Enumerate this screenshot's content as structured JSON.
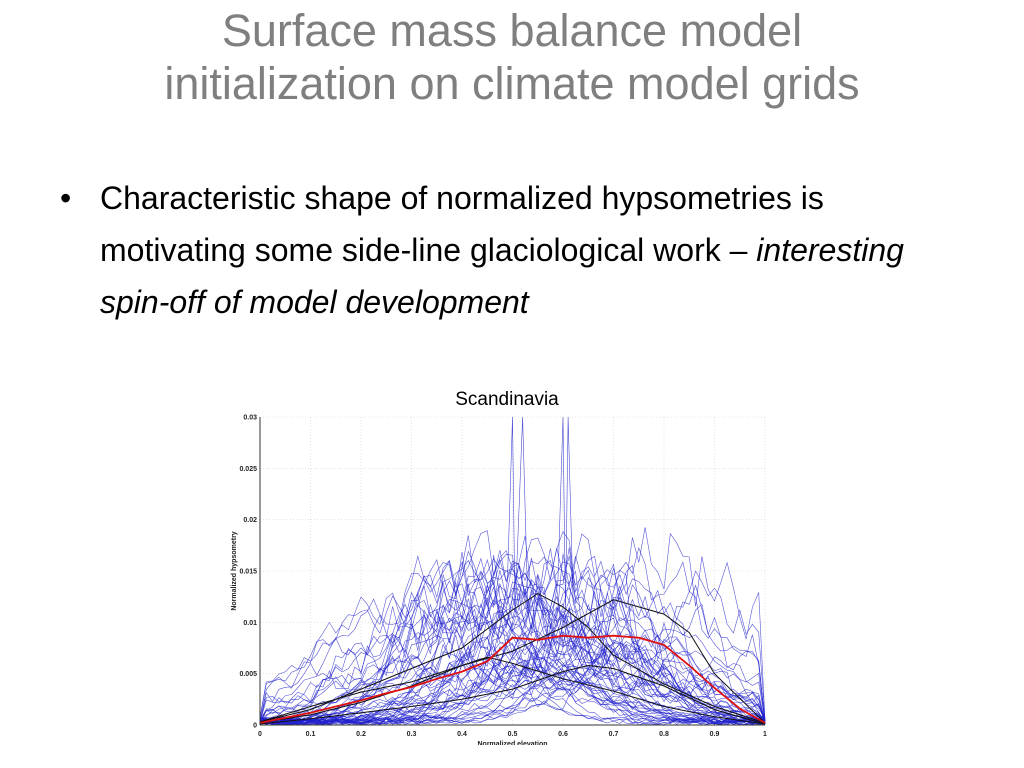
{
  "slide": {
    "title_line1": "Surface mass balance model",
    "title_line2": "initialization on climate model grids",
    "bullet_glyph": "•",
    "bullet_text_plain": "Characteristic shape of normalized hypsometries is motivating some side-line glaciological work – ",
    "bullet_text_italic": "interesting spin-off of model development"
  },
  "colors": {
    "title": "#7f7f7f",
    "thin_lines": "#2020cc",
    "mean_line": "#e01010",
    "highlight_lines": "#111111"
  },
  "chart_data": {
    "type": "line",
    "title": "Scandinavia",
    "xlabel": "Normalized elevation",
    "ylabel": "Normalized hypsometry",
    "xlim": [
      0,
      1
    ],
    "ylim": [
      0,
      0.03
    ],
    "xticks": [
      "0",
      "0.1",
      "0.2",
      "0.3",
      "0.4",
      "0.5",
      "0.6",
      "0.7",
      "0.8",
      "0.9",
      "1"
    ],
    "yticks": [
      "0",
      "0.005",
      "0.01",
      "0.015",
      "0.02",
      "0.025",
      "0.03"
    ],
    "grid": true,
    "series_note": "many individual glacier hypsometries (blue), several highlighted curves (black), and a mean curve (red)",
    "series": [
      {
        "name": "",
        "color": "#e01010",
        "x": [
          0,
          0.05,
          0.1,
          0.15,
          0.2,
          0.25,
          0.3,
          0.35,
          0.4,
          0.45,
          0.5,
          0.55,
          0.6,
          0.65,
          0.7,
          0.75,
          0.8,
          0.85,
          0.9,
          0.95,
          1
        ],
        "y": [
          0.0002,
          0.0007,
          0.0012,
          0.0018,
          0.0024,
          0.0031,
          0.0037,
          0.0045,
          0.0052,
          0.0062,
          0.0085,
          0.0083,
          0.0087,
          0.0085,
          0.0087,
          0.0085,
          0.0078,
          0.0058,
          0.0036,
          0.0016,
          0.0002
        ]
      },
      {
        "name": "",
        "color": "#111111",
        "x": [
          0,
          0.1,
          0.2,
          0.3,
          0.4,
          0.5,
          0.55,
          0.6,
          0.65,
          0.7,
          0.8,
          0.9,
          1
        ],
        "y": [
          0.0003,
          0.0015,
          0.0035,
          0.0055,
          0.0075,
          0.0112,
          0.0128,
          0.0115,
          0.0095,
          0.0068,
          0.004,
          0.0018,
          0.0002
        ]
      },
      {
        "name": "",
        "color": "#111111",
        "x": [
          0,
          0.1,
          0.2,
          0.3,
          0.4,
          0.5,
          0.6,
          0.7,
          0.8,
          0.85,
          0.9,
          1
        ],
        "y": [
          0.0002,
          0.001,
          0.0022,
          0.0038,
          0.0058,
          0.0072,
          0.0095,
          0.0122,
          0.0108,
          0.009,
          0.005,
          0.0002
        ]
      },
      {
        "name": "",
        "color": "#111111",
        "x": [
          0,
          0.1,
          0.2,
          0.3,
          0.4,
          0.5,
          0.6,
          0.65,
          0.7,
          0.8,
          0.9,
          1
        ],
        "y": [
          0.0001,
          0.0006,
          0.0012,
          0.0018,
          0.0025,
          0.0035,
          0.0052,
          0.0058,
          0.0055,
          0.0038,
          0.0015,
          0.0001
        ]
      },
      {
        "name": "",
        "color": "#111111",
        "x": [
          0,
          0.1,
          0.2,
          0.3,
          0.4,
          0.45,
          0.5,
          0.6,
          0.7,
          0.8,
          0.9,
          1
        ],
        "y": [
          0.0003,
          0.0018,
          0.0032,
          0.0042,
          0.0058,
          0.0066,
          0.006,
          0.0045,
          0.0033,
          0.0018,
          0.0008,
          0.0001
        ]
      }
    ]
  }
}
